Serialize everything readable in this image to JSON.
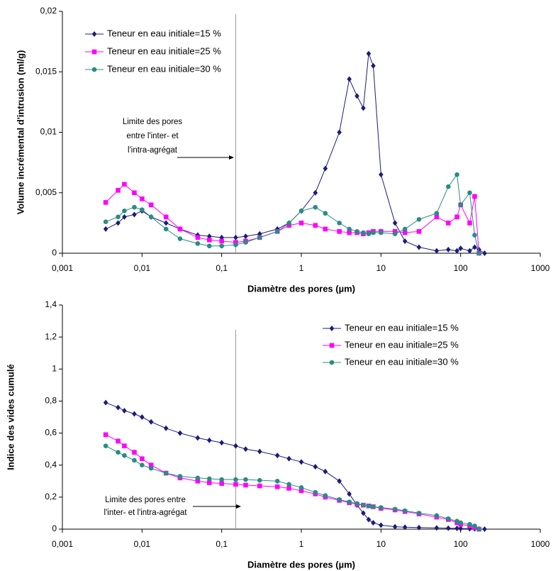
{
  "chart_data": [
    {
      "type": "line",
      "xlabel": "Diamètre des pores (µm)",
      "ylabel": "Volume incrémental d'intrusion (ml/g)",
      "log_x": true,
      "grid": false,
      "legend": "upper left",
      "xlim": [
        0.001,
        1000
      ],
      "xticks": [
        {
          "value": 0.001,
          "label": "0,001"
        },
        {
          "value": 0.01,
          "label": "0,01"
        },
        {
          "value": 0.1,
          "label": "0,1"
        },
        1,
        10,
        100,
        1000
      ],
      "ylim": [
        0,
        0.02
      ],
      "yticks": [
        0,
        {
          "value": 0.005,
          "label": "0,005"
        },
        {
          "value": 0.01,
          "label": "0,01"
        },
        {
          "value": 0.015,
          "label": "0,015"
        },
        {
          "value": 0.02,
          "label": "0,02"
        }
      ],
      "x": [
        0.0035,
        0.005,
        0.006,
        0.008,
        0.01,
        0.013,
        0.02,
        0.03,
        0.05,
        0.07,
        0.1,
        0.15,
        0.2,
        0.3,
        0.5,
        0.7,
        1,
        1.5,
        2,
        3,
        4,
        5,
        6,
        7,
        8,
        10,
        15,
        20,
        30,
        50,
        70,
        90,
        100,
        130,
        150,
        170,
        200
      ],
      "series": [
        {
          "name": "Teneur en eau initiale=15 %",
          "color": "#1c1c78",
          "marker": "diamond",
          "values": [
            0.002,
            0.0025,
            0.003,
            0.0032,
            0.0035,
            0.003,
            0.0025,
            0.002,
            0.0015,
            0.0014,
            0.0013,
            0.0013,
            0.0014,
            0.0016,
            0.002,
            0.0025,
            0.0035,
            0.005,
            0.007,
            0.01,
            0.0144,
            0.013,
            0.012,
            0.0165,
            0.0155,
            0.0065,
            0.0025,
            0.001,
            0.0005,
            0.0002,
            0.0003,
            0.0002,
            0.0004,
            0.0002,
            0.0005,
            0.0003,
            0
          ]
        },
        {
          "name": "Teneur en eau initiale=25 %",
          "color": "#ff00ff",
          "marker": "square",
          "values": [
            0.0042,
            0.0052,
            0.0057,
            0.005,
            0.0045,
            0.004,
            0.003,
            0.002,
            0.0013,
            0.0011,
            0.001,
            0.0009,
            0.001,
            0.0013,
            0.0018,
            0.0023,
            0.0025,
            0.0023,
            0.002,
            0.0018,
            0.0017,
            0.0017,
            0.0016,
            0.0017,
            0.0018,
            0.0018,
            0.0018,
            0.0017,
            0.0018,
            0.003,
            0.0025,
            0.003,
            0.004,
            0.0025,
            0.0047,
            0,
            null
          ]
        },
        {
          "name": "Teneur en eau initiale=30 %",
          "color": "#2a8c82",
          "marker": "circle",
          "values": [
            0.0026,
            0.003,
            0.0035,
            0.0038,
            0.0036,
            0.003,
            0.002,
            0.0012,
            0.0008,
            0.0006,
            0.0006,
            0.0007,
            0.0009,
            0.0013,
            0.0018,
            0.0025,
            0.0035,
            0.0038,
            0.0033,
            0.0025,
            0.002,
            0.0018,
            0.0017,
            0.0016,
            0.0017,
            0.0017,
            0.0016,
            0.002,
            0.0028,
            0.0033,
            0.0055,
            0.0065,
            0.004,
            0.005,
            0.0015,
            0,
            null
          ]
        }
      ],
      "annotation": {
        "lines": [
          "Limite des pores",
          "entre l'inter- et",
          "l'intra-agrégat"
        ],
        "x": 0.15
      }
    },
    {
      "type": "line",
      "xlabel": "Diamètre des pores (µm)",
      "ylabel": "Indice des vides cumulé",
      "log_x": true,
      "grid": false,
      "legend": "upper right",
      "xlim": [
        0.001,
        1000
      ],
      "xticks": [
        {
          "value": 0.001,
          "label": "0,001"
        },
        {
          "value": 0.01,
          "label": "0,01"
        },
        {
          "value": 0.1,
          "label": "0,1"
        },
        1,
        10,
        100,
        1000
      ],
      "ylim": [
        0,
        1.4
      ],
      "yticks": [
        0,
        {
          "value": 0.2,
          "label": "0,2"
        },
        {
          "value": 0.4,
          "label": "0,4"
        },
        {
          "value": 0.6,
          "label": "0,6"
        },
        {
          "value": 0.8,
          "label": "0,8"
        },
        1,
        {
          "value": 1.2,
          "label": "1,2"
        },
        {
          "value": 1.4,
          "label": "1,4"
        }
      ],
      "x": [
        0.0035,
        0.005,
        0.006,
        0.008,
        0.01,
        0.013,
        0.02,
        0.03,
        0.05,
        0.07,
        0.1,
        0.15,
        0.2,
        0.3,
        0.5,
        0.7,
        1,
        1.5,
        2,
        3,
        4,
        5,
        6,
        7,
        8,
        10,
        15,
        20,
        30,
        50,
        70,
        90,
        100,
        130,
        150,
        170,
        200
      ],
      "series": [
        {
          "name": "Teneur en eau initiale=15 %",
          "color": "#1c1c78",
          "marker": "diamond",
          "values": [
            0.79,
            0.76,
            0.74,
            0.72,
            0.7,
            0.67,
            0.63,
            0.6,
            0.57,
            0.555,
            0.54,
            0.52,
            0.5,
            0.485,
            0.46,
            0.44,
            0.42,
            0.39,
            0.36,
            0.3,
            0.22,
            0.15,
            0.1,
            0.06,
            0.04,
            0.025,
            0.015,
            0.012,
            0.01,
            0.008,
            0.006,
            0.005,
            0.004,
            0.003,
            0.002,
            0.001,
            0
          ]
        },
        {
          "name": "Teneur en eau initiale=25 %",
          "color": "#ff00ff",
          "marker": "square",
          "values": [
            0.59,
            0.55,
            0.52,
            0.48,
            0.44,
            0.4,
            0.35,
            0.32,
            0.3,
            0.29,
            0.285,
            0.28,
            0.275,
            0.27,
            0.265,
            0.255,
            0.24,
            0.22,
            0.2,
            0.18,
            0.165,
            0.155,
            0.15,
            0.145,
            0.14,
            0.13,
            0.12,
            0.11,
            0.095,
            0.075,
            0.06,
            0.04,
            0.03,
            0.02,
            0.01,
            0,
            null
          ]
        },
        {
          "name": "Teneur en eau initiale=30 %",
          "color": "#2a8c82",
          "marker": "circle",
          "values": [
            0.52,
            0.48,
            0.46,
            0.43,
            0.4,
            0.38,
            0.35,
            0.33,
            0.32,
            0.315,
            0.31,
            0.31,
            0.31,
            0.305,
            0.3,
            0.28,
            0.26,
            0.23,
            0.21,
            0.185,
            0.17,
            0.16,
            0.15,
            0.145,
            0.14,
            0.135,
            0.125,
            0.115,
            0.1,
            0.085,
            0.065,
            0.05,
            0.04,
            0.03,
            0.02,
            0,
            null
          ]
        }
      ],
      "annotation": {
        "lines": [
          "Limite des pores entre",
          "l'inter- et l'intra-agrégat"
        ],
        "x": 0.15
      }
    }
  ]
}
